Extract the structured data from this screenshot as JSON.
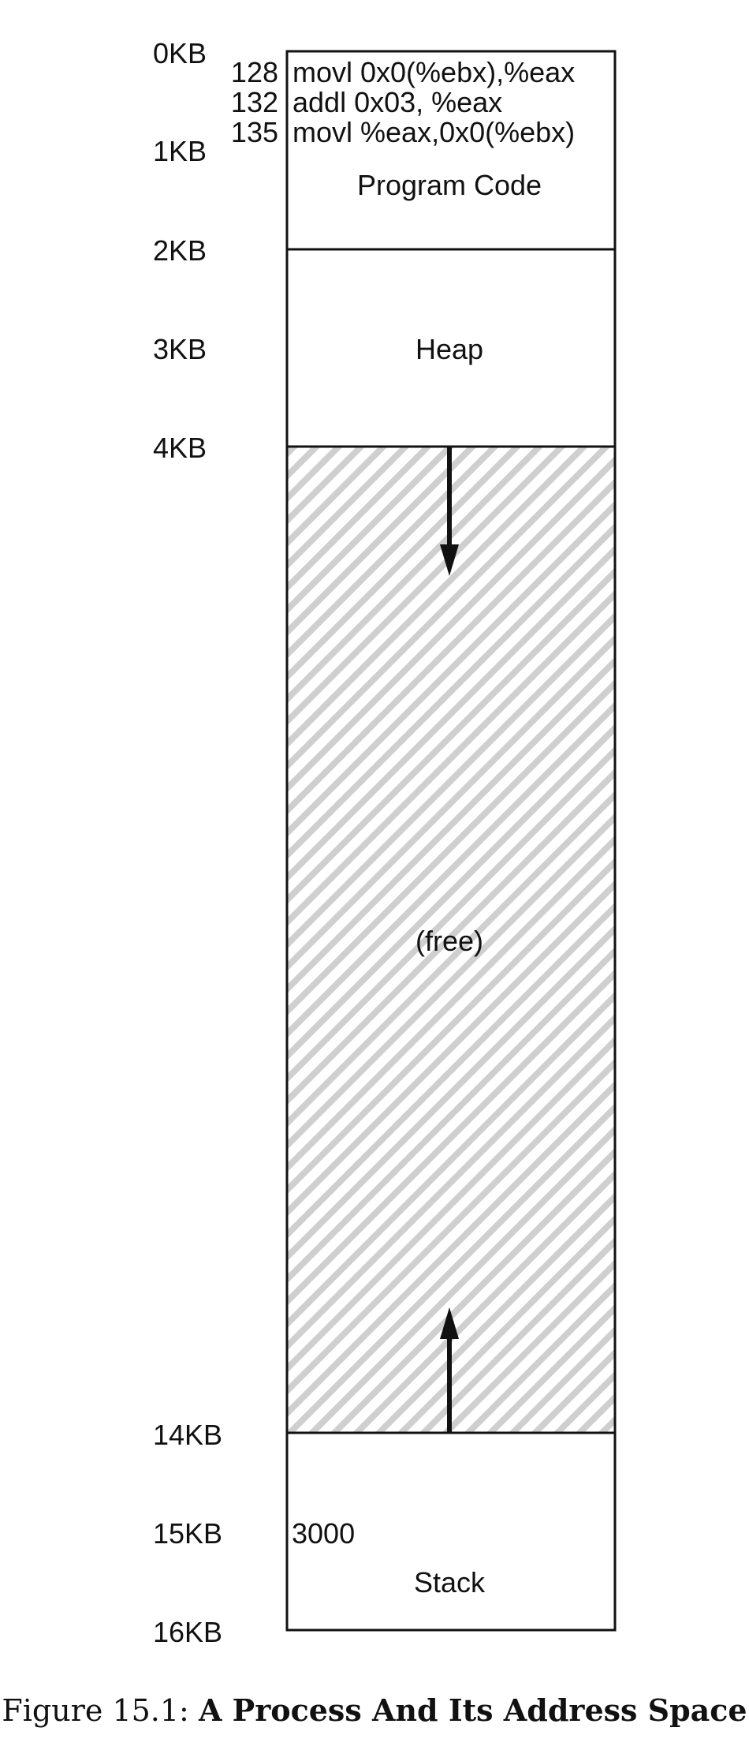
{
  "address_labels": [
    "0KB",
    "1KB",
    "2KB",
    "3KB",
    "4KB",
    "14KB",
    "15KB",
    "16KB"
  ],
  "code_lines": [
    {
      "address": "128",
      "instruction": "movl 0x0(%ebx),%eax"
    },
    {
      "address": "132",
      "instruction": "addl 0x03, %eax"
    },
    {
      "address": "135",
      "instruction": "movl %eax,0x0(%ebx)"
    }
  ],
  "segments": {
    "code": "Program Code",
    "heap": "Heap",
    "free": "(free)",
    "stack": "Stack",
    "stack_value": "3000"
  },
  "caption": {
    "prefix": "Figure 15.1:",
    "title": "A Process And Its Address Space"
  }
}
